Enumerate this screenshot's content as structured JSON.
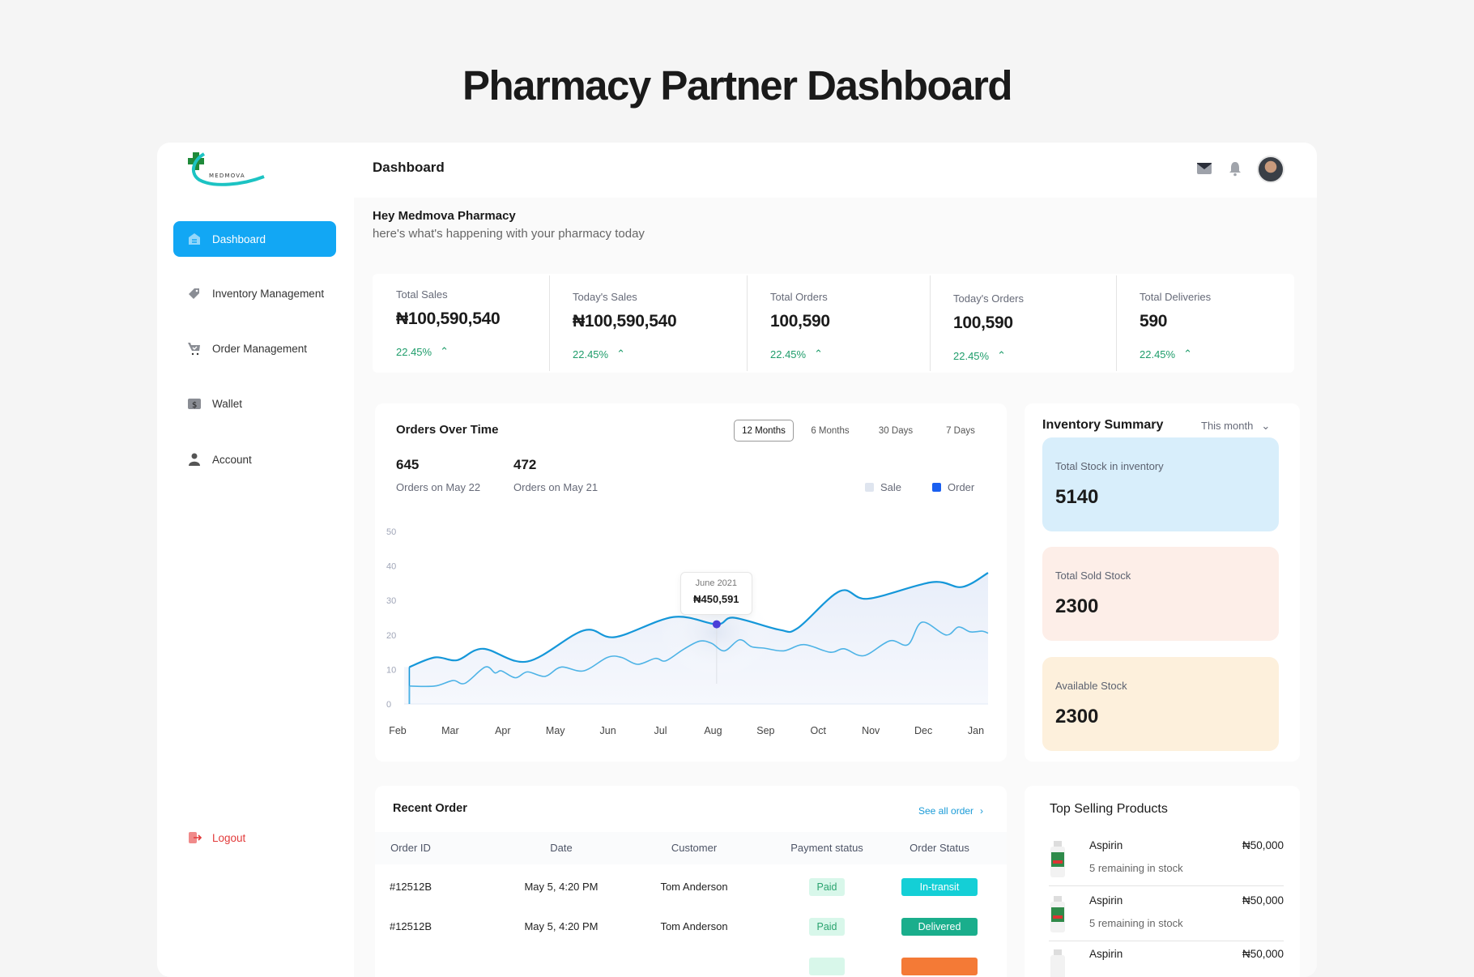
{
  "page_title": "Pharmacy Partner Dashboard",
  "logo": {
    "text": "MEDMOVA"
  },
  "sidebar": {
    "items": [
      {
        "label": "Dashboard",
        "icon": "home-icon",
        "active": true
      },
      {
        "label": "Inventory Management",
        "icon": "tag-icon"
      },
      {
        "label": "Order Management",
        "icon": "cart-icon"
      },
      {
        "label": "Wallet",
        "icon": "wallet-icon"
      },
      {
        "label": "Account",
        "icon": "user-icon"
      }
    ],
    "logout": "Logout"
  },
  "header": {
    "title": "Dashboard",
    "icons": [
      "mail-icon",
      "bell-icon",
      "avatar"
    ]
  },
  "greeting": {
    "title": "Hey Medmova Pharmacy",
    "subtitle": "here's what's happening with your pharmacy today"
  },
  "stats": [
    {
      "label": "Total Sales",
      "value": "₦100,590,540",
      "change": "22.45%"
    },
    {
      "label": "Today's Sales",
      "value": "₦100,590,540",
      "change": "22.45%"
    },
    {
      "label": "Total Orders",
      "value": "100,590",
      "change": "22.45%"
    },
    {
      "label": "Today's Orders",
      "value": "100,590",
      "change": "22.45%"
    },
    {
      "label": "Total Deliveries",
      "value": "590",
      "change": "22.45%"
    }
  ],
  "orders_chart": {
    "title": "Orders Over Time",
    "tabs": [
      "12 Months",
      "6 Months",
      "30 Days",
      "7 Days"
    ],
    "active_tab": "12 Months",
    "summary": [
      {
        "value": "645",
        "label": "Orders on May 22"
      },
      {
        "value": "472",
        "label": "Orders on May 21"
      }
    ],
    "tooltip": {
      "label": "June 2021",
      "value": "₦450,591"
    }
  },
  "chart_data": {
    "type": "area",
    "categories": [
      "Feb",
      "Mar",
      "Apr",
      "May",
      "Jun",
      "Jul",
      "Aug",
      "Sep",
      "Oct",
      "Nov",
      "Dec",
      "Jan"
    ],
    "yticks": [
      0,
      10,
      20,
      30,
      40,
      50
    ],
    "ylim": [
      0,
      50
    ],
    "legend": [
      {
        "name": "Sale",
        "color": "#dfe5ef"
      },
      {
        "name": "Order",
        "color": "#1a5ff0"
      }
    ],
    "legend_position": "top-right",
    "grid": false,
    "series": [
      {
        "color": "#1597d9",
        "points": [
          [
            0.1,
            10.7
          ],
          [
            0.59,
            13.5
          ],
          [
            1.02,
            12.7
          ],
          [
            1.52,
            16
          ],
          [
            2.37,
            12.3
          ],
          [
            3.45,
            21.3
          ],
          [
            4.06,
            19.4
          ],
          [
            5.18,
            25.2
          ],
          [
            6.01,
            23.1
          ],
          [
            6.34,
            25
          ],
          [
            7.22,
            21.5
          ],
          [
            7.57,
            22
          ],
          [
            8.38,
            32.7
          ],
          [
            8.92,
            30.5
          ],
          [
            10.15,
            35.3
          ],
          [
            10.73,
            33.9
          ],
          [
            11.23,
            38
          ]
        ]
      },
      {
        "color": "#4db3e6",
        "points": [
          [
            0.1,
            5.2
          ],
          [
            0.59,
            5.2
          ],
          [
            0.94,
            6.8
          ],
          [
            1.17,
            6
          ],
          [
            1.56,
            10.7
          ],
          [
            1.75,
            9
          ],
          [
            1.87,
            9.6
          ],
          [
            2.14,
            7.6
          ],
          [
            2.37,
            9.3
          ],
          [
            2.71,
            8
          ],
          [
            3.02,
            10.7
          ],
          [
            3.45,
            9.6
          ],
          [
            3.91,
            13.5
          ],
          [
            4.18,
            13.5
          ],
          [
            4.49,
            11.5
          ],
          [
            4.83,
            13.2
          ],
          [
            5.03,
            12.5
          ],
          [
            5.37,
            15.8
          ],
          [
            5.68,
            18.2
          ],
          [
            5.91,
            17.6
          ],
          [
            6.16,
            15.4
          ],
          [
            6.45,
            18.6
          ],
          [
            6.68,
            16.6
          ],
          [
            6.92,
            16.2
          ],
          [
            7.3,
            15.4
          ],
          [
            7.69,
            17.2
          ],
          [
            8.19,
            15
          ],
          [
            8.46,
            16
          ],
          [
            8.84,
            14
          ],
          [
            9.34,
            18.3
          ],
          [
            9.69,
            17.2
          ],
          [
            9.96,
            23.7
          ],
          [
            10.42,
            20
          ],
          [
            10.66,
            22.3
          ],
          [
            10.89,
            20.9
          ],
          [
            11.12,
            21.1
          ],
          [
            11.23,
            20.5
          ]
        ]
      }
    ],
    "highlight": {
      "x": 6.01,
      "y": 23.1,
      "color": "#4a3fd8"
    }
  },
  "inventory": {
    "title": "Inventory Summary",
    "period": "This month",
    "boxes": [
      {
        "label": "Total Stock in inventory",
        "value": "5140",
        "color": "#d8eefb"
      },
      {
        "label": "Total Sold Stock",
        "value": "2300",
        "color": "#fdeee8"
      },
      {
        "label": "Available Stock",
        "value": "2300",
        "color": "#fdf0dc"
      }
    ]
  },
  "recent_orders": {
    "title": "Recent Order",
    "see_all": "See all order",
    "columns": [
      "Order ID",
      "Date",
      "Customer",
      "Payment status",
      "Order Status"
    ],
    "rows": [
      {
        "id": "#12512B",
        "date": "May 5, 4:20 PM",
        "customer": "Tom Anderson",
        "payment": "Paid",
        "status": "In-transit",
        "status_color": "#14cfd6"
      },
      {
        "id": "#12512B",
        "date": "May 5, 4:20 PM",
        "customer": "Tom Anderson",
        "payment": "Paid",
        "status": "Delivered",
        "status_color": "#1aae8c"
      },
      {
        "payment_color": "#d8f7ea",
        "status_color": "#f47a36"
      }
    ]
  },
  "top_products": {
    "title": "Top Selling Products",
    "items": [
      {
        "name": "Aspirin",
        "price": "₦50,000",
        "stock": "5 remaining in stock"
      },
      {
        "name": "Aspirin",
        "price": "₦50,000",
        "stock": "5 remaining in stock"
      },
      {
        "name": "Aspirin",
        "price": "₦50,000"
      }
    ]
  }
}
